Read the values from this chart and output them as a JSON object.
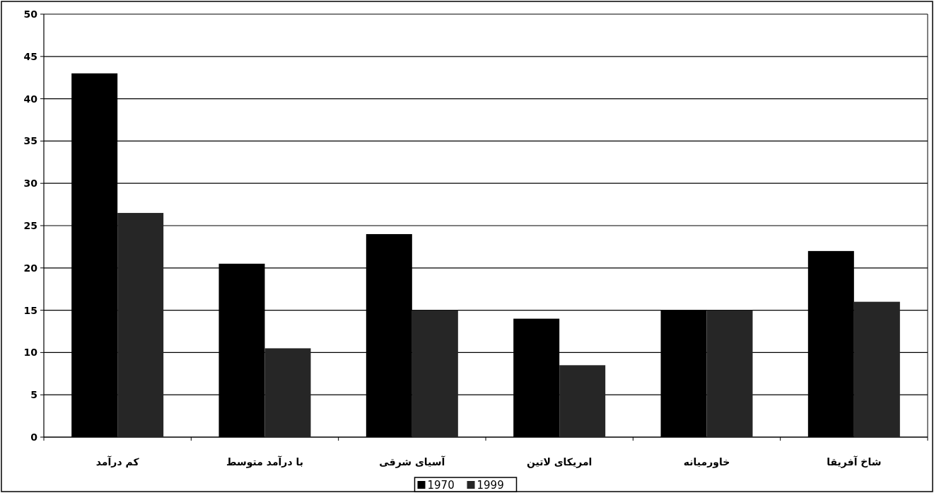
{
  "chart_data": {
    "type": "bar",
    "categories": [
      "کم درآمد",
      "با درآمد متوسط",
      "آسیای شرقی",
      "امریکای لاتین",
      "خاورمیانه",
      "شاخ آفریقا"
    ],
    "series": [
      {
        "name": "1970",
        "color": "#000000",
        "values": [
          43,
          20.5,
          24,
          14,
          15,
          22
        ]
      },
      {
        "name": "1999",
        "color": "#262626",
        "values": [
          26.5,
          10.5,
          15,
          8.5,
          15,
          16
        ]
      }
    ],
    "ylim": [
      0,
      50
    ],
    "yticks": [
      0,
      5,
      10,
      15,
      20,
      25,
      30,
      35,
      40,
      45,
      50
    ],
    "grid": "y",
    "legend": "bottom"
  }
}
